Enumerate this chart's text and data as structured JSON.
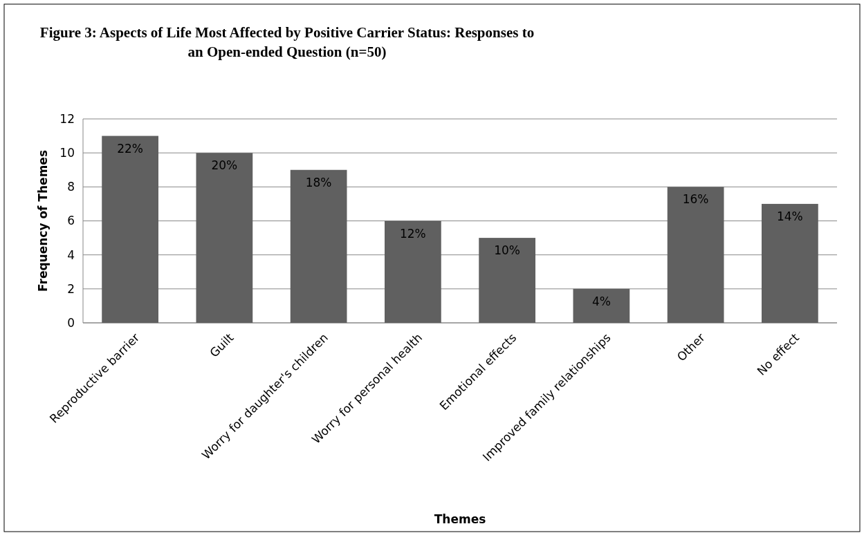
{
  "chart_data": {
    "type": "bar",
    "title": "Figure 3: Aspects of Life Most Affected by Positive Carrier Status: Responses to\nan Open-ended Question (n=50)",
    "xlabel": "Themes",
    "ylabel": "Frequency of Themes",
    "categories": [
      "Reproductive barrier",
      "Guilt",
      "Worry for daughter's children",
      "Worry for personal health",
      "Emotional effects",
      "Improved family relationships",
      "Other",
      "No effect"
    ],
    "values": [
      11,
      10,
      9,
      6,
      5,
      2,
      8,
      7
    ],
    "annotations": [
      {
        "text": "22%",
        "x": "Reproductive barrier",
        "y": 11
      },
      {
        "text": "20%",
        "x": "Guilt",
        "y": 10
      },
      {
        "text": "18%",
        "x": "Worry for daughter's children",
        "y": 9
      },
      {
        "text": "12%",
        "x": "Worry for personal health",
        "y": 6
      },
      {
        "text": "10%",
        "x": "Emotional effects",
        "y": 5
      },
      {
        "text": "4%",
        "x": "Improved family relationships",
        "y": 2
      },
      {
        "text": "16%",
        "x": "Other",
        "y": 8
      },
      {
        "text": "14%",
        "x": "No effect",
        "y": 7
      }
    ],
    "color": "#606060",
    "ylim": [
      0,
      12
    ],
    "yticks": [
      0,
      2,
      4,
      6,
      8,
      10,
      12
    ],
    "grid": "y"
  }
}
